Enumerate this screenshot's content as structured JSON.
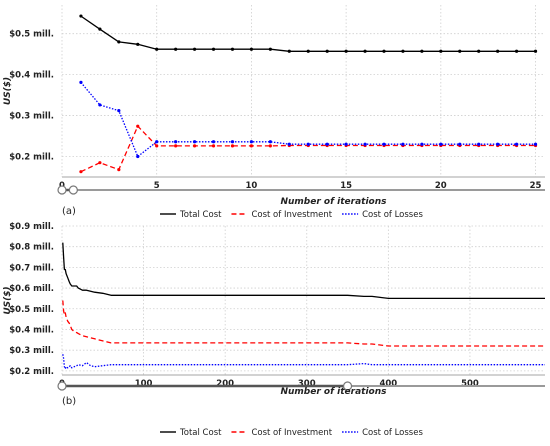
{
  "chart_data": [
    {
      "panel_label": "(a)",
      "type": "line",
      "title": "",
      "xlabel": "Number of iterations",
      "ylabel": "US($)",
      "xlim": [
        0,
        25.5
      ],
      "ylim": [
        0.15,
        0.57
      ],
      "x_ticks": [
        0,
        5,
        10,
        15,
        20,
        25
      ],
      "y_ticks": [
        0.2,
        0.3,
        0.4,
        0.5
      ],
      "y_tick_labels": [
        "$0.2 mill.",
        "$0.3 mill.",
        "$0.4 mill.",
        "$0.5 mill."
      ],
      "grid": true,
      "legend_position": "bottom",
      "markers": true,
      "slider": {
        "start": 0,
        "end": 0.6
      },
      "series": [
        {
          "name": "Total Cost",
          "color": "#000000",
          "style": "solid",
          "x": [
            1,
            2,
            3,
            4,
            5,
            6,
            7,
            8,
            9,
            10,
            11,
            12,
            13,
            14,
            15,
            16,
            17,
            18,
            19,
            20,
            21,
            22,
            23,
            24,
            25
          ],
          "values": [
            0.543,
            0.511,
            0.48,
            0.474,
            0.462,
            0.462,
            0.462,
            0.462,
            0.462,
            0.462,
            0.462,
            0.457,
            0.457,
            0.457,
            0.457,
            0.457,
            0.457,
            0.457,
            0.457,
            0.457,
            0.457,
            0.457,
            0.457,
            0.457,
            0.457
          ]
        },
        {
          "name": "Cost of Investment",
          "color": "#ff0000",
          "style": "dashed",
          "x": [
            1,
            2,
            3,
            4,
            5,
            6,
            7,
            8,
            9,
            10,
            11,
            12,
            13,
            14,
            15,
            16,
            17,
            18,
            19,
            20,
            21,
            22,
            23,
            24,
            25
          ],
          "values": [
            0.163,
            0.185,
            0.168,
            0.274,
            0.226,
            0.226,
            0.226,
            0.226,
            0.226,
            0.226,
            0.226,
            0.227,
            0.227,
            0.227,
            0.227,
            0.227,
            0.227,
            0.227,
            0.227,
            0.227,
            0.227,
            0.227,
            0.227,
            0.227,
            0.227
          ]
        },
        {
          "name": "Cost of Losses",
          "color": "#0000ff",
          "style": "dotted",
          "x": [
            1,
            2,
            3,
            4,
            5,
            6,
            7,
            8,
            9,
            10,
            11,
            12,
            13,
            14,
            15,
            16,
            17,
            18,
            19,
            20,
            21,
            22,
            23,
            24,
            25
          ],
          "values": [
            0.381,
            0.326,
            0.312,
            0.2,
            0.236,
            0.236,
            0.236,
            0.236,
            0.236,
            0.236,
            0.236,
            0.23,
            0.23,
            0.23,
            0.23,
            0.23,
            0.23,
            0.23,
            0.23,
            0.23,
            0.23,
            0.23,
            0.23,
            0.23,
            0.23
          ]
        }
      ]
    },
    {
      "panel_label": "(b)",
      "type": "line",
      "title": "",
      "xlabel": "Number of iterations",
      "ylabel": "US($)",
      "xlim": [
        0,
        592
      ],
      "ylim": [
        0.18,
        0.9
      ],
      "x_ticks": [
        0,
        100,
        200,
        300,
        400,
        500
      ],
      "y_ticks": [
        0.2,
        0.3,
        0.4,
        0.5,
        0.6,
        0.7,
        0.8,
        0.9
      ],
      "y_tick_labels": [
        "$0.2 mill.",
        "$0.3 mill.",
        "$0.4 mill.",
        "$0.5 mill.",
        "$0.6 mill.",
        "$0.7 mill.",
        "$0.8 mill.",
        "$0.9 mill."
      ],
      "grid": true,
      "legend_position": "bottom",
      "markers": false,
      "slider": {
        "start": 0,
        "end": 350
      },
      "series": [
        {
          "name": "Total Cost",
          "color": "#000000",
          "style": "solid",
          "x": [
            1,
            2,
            3,
            4,
            5,
            7,
            9,
            10,
            12,
            15,
            18,
            20,
            25,
            30,
            35,
            40,
            50,
            60,
            70,
            80,
            100,
            150,
            200,
            300,
            350,
            370,
            380,
            390,
            400,
            450,
            500,
            550,
            592
          ],
          "values": [
            0.82,
            0.75,
            0.69,
            0.69,
            0.67,
            0.65,
            0.63,
            0.62,
            0.61,
            0.61,
            0.61,
            0.6,
            0.59,
            0.59,
            0.585,
            0.58,
            0.575,
            0.565,
            0.565,
            0.565,
            0.565,
            0.565,
            0.565,
            0.565,
            0.565,
            0.56,
            0.56,
            0.555,
            0.55,
            0.55,
            0.55,
            0.55,
            0.55
          ]
        },
        {
          "name": "Cost of Investment",
          "color": "#ff0000",
          "style": "dashed",
          "x": [
            1,
            2,
            3,
            4,
            5,
            7,
            9,
            10,
            12,
            15,
            18,
            20,
            25,
            30,
            35,
            40,
            50,
            60,
            70,
            80,
            100,
            150,
            200,
            300,
            350,
            370,
            380,
            390,
            400,
            450,
            500,
            550,
            592
          ],
          "values": [
            0.54,
            0.49,
            0.47,
            0.48,
            0.46,
            0.44,
            0.43,
            0.42,
            0.4,
            0.39,
            0.385,
            0.38,
            0.37,
            0.365,
            0.36,
            0.355,
            0.345,
            0.335,
            0.335,
            0.335,
            0.335,
            0.335,
            0.335,
            0.335,
            0.335,
            0.33,
            0.33,
            0.325,
            0.32,
            0.32,
            0.32,
            0.32,
            0.32
          ]
        },
        {
          "name": "Cost of Losses",
          "color": "#0000ff",
          "style": "dotted",
          "x": [
            1,
            2,
            3,
            4,
            5,
            7,
            9,
            10,
            12,
            15,
            18,
            20,
            25,
            30,
            35,
            40,
            50,
            60,
            70,
            80,
            100,
            150,
            200,
            300,
            350,
            370,
            380,
            390,
            400,
            450,
            500,
            550,
            592
          ],
          "values": [
            0.28,
            0.26,
            0.22,
            0.21,
            0.22,
            0.215,
            0.22,
            0.225,
            0.215,
            0.22,
            0.225,
            0.23,
            0.225,
            0.24,
            0.225,
            0.22,
            0.225,
            0.23,
            0.23,
            0.23,
            0.23,
            0.23,
            0.23,
            0.23,
            0.23,
            0.235,
            0.23,
            0.23,
            0.23,
            0.23,
            0.23,
            0.23,
            0.23
          ]
        }
      ]
    }
  ]
}
